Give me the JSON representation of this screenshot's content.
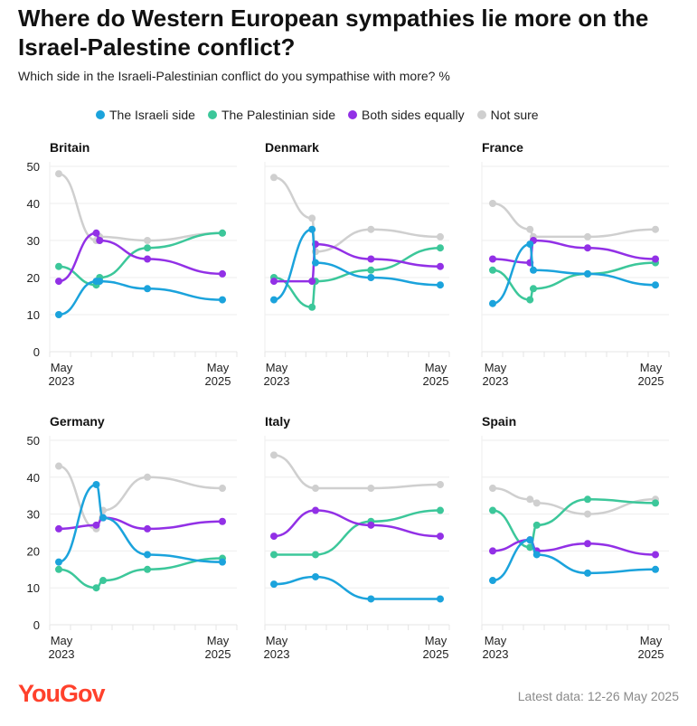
{
  "header": {
    "title": "Where do Western European sympathies lie more on the Israel-Palestine conflict?",
    "subtitle": "Which side in the Israeli-Palestinian conflict do you sympathise with more? %"
  },
  "legend": [
    {
      "label": "The Israeli side",
      "color": "#1ba3dc"
    },
    {
      "label": "The Palestinian side",
      "color": "#3cc79a"
    },
    {
      "label": "Both sides equally",
      "color": "#9230e6"
    },
    {
      "label": "Not sure",
      "color": "#cfcfcf"
    }
  ],
  "footer": {
    "logo": "YouGov",
    "note": "Latest data: 12-26 May 2025"
  },
  "chart_data": {
    "type": "line",
    "x_unit": "months since May 2023",
    "x_tick_labels": [
      [
        "May",
        "2023"
      ],
      [
        "May",
        "2025"
      ]
    ],
    "xlim": [
      0,
      24
    ],
    "ylim": [
      0,
      50
    ],
    "y_ticks": [
      "0",
      "10",
      "20",
      "30",
      "40",
      "50"
    ],
    "grid": true,
    "legend_position": "top",
    "series_names": [
      "The Israeli side",
      "The Palestinian side",
      "Both sides equally",
      "Not sure"
    ],
    "panels": [
      {
        "title": "Britain",
        "x": [
          0,
          5.5,
          6,
          13,
          24
        ],
        "series": [
          [
            10,
            19,
            19,
            17,
            14
          ],
          [
            23,
            18,
            20,
            28,
            32
          ],
          [
            19,
            32,
            30,
            25,
            21
          ],
          [
            48,
            30,
            31,
            30,
            32
          ]
        ]
      },
      {
        "title": "Denmark",
        "x": [
          0,
          5.5,
          6,
          14,
          24
        ],
        "series": [
          [
            14,
            33,
            24,
            20,
            18
          ],
          [
            20,
            12,
            19,
            22,
            28
          ],
          [
            19,
            19,
            29,
            25,
            23
          ],
          [
            47,
            36,
            27,
            33,
            31
          ]
        ]
      },
      {
        "title": "France",
        "x": [
          0,
          5.5,
          6,
          14,
          24
        ],
        "series": [
          [
            13,
            29,
            22,
            21,
            18
          ],
          [
            22,
            14,
            17,
            21,
            24
          ],
          [
            25,
            24,
            30,
            28,
            25
          ],
          [
            40,
            33,
            31,
            31,
            33
          ]
        ]
      },
      {
        "title": "Germany",
        "x": [
          0,
          5.5,
          6.5,
          13,
          24
        ],
        "series": [
          [
            17,
            38,
            29,
            19,
            17
          ],
          [
            15,
            10,
            12,
            15,
            18
          ],
          [
            26,
            27,
            29,
            26,
            28
          ],
          [
            43,
            26,
            31,
            40,
            37
          ]
        ]
      },
      {
        "title": "Italy",
        "x": [
          0,
          6,
          14,
          24
        ],
        "series": [
          [
            11,
            13,
            7,
            7
          ],
          [
            19,
            19,
            28,
            31
          ],
          [
            24,
            31,
            27,
            24
          ],
          [
            46,
            37,
            37,
            38
          ]
        ]
      },
      {
        "title": "Spain",
        "x": [
          0,
          5.5,
          6.5,
          14,
          24
        ],
        "series": [
          [
            12,
            23,
            19,
            14,
            15
          ],
          [
            31,
            21,
            27,
            34,
            33
          ],
          [
            20,
            23,
            20,
            22,
            19
          ],
          [
            37,
            34,
            33,
            30,
            34
          ]
        ]
      }
    ]
  }
}
